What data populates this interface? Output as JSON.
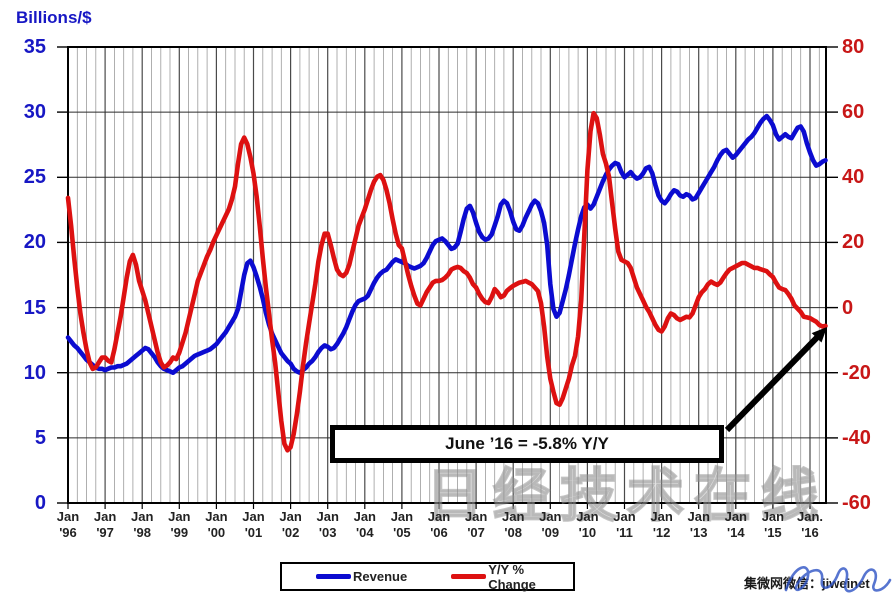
{
  "header": {
    "axis_title_left": "Billions/$"
  },
  "y_axis_left": {
    "labels": [
      "35",
      "30",
      "25",
      "20",
      "15",
      "10",
      "5",
      "0"
    ],
    "color": "#1717c4"
  },
  "y_axis_right": {
    "labels": [
      "80",
      "60",
      "40",
      "20",
      "0",
      "-20",
      "-40",
      "-60"
    ],
    "color": "#c81717"
  },
  "x_axis": {
    "years": [
      {
        "top": "Jan",
        "bottom": "'96"
      },
      {
        "top": "Jan",
        "bottom": "'97"
      },
      {
        "top": "Jan",
        "bottom": "'98"
      },
      {
        "top": "Jan",
        "bottom": "'99"
      },
      {
        "top": "Jan",
        "bottom": "'00"
      },
      {
        "top": "Jan",
        "bottom": "'01"
      },
      {
        "top": "Jan",
        "bottom": "'02"
      },
      {
        "top": "Jan",
        "bottom": "'03"
      },
      {
        "top": "Jan",
        "bottom": "'04"
      },
      {
        "top": "Jan",
        "bottom": "'05"
      },
      {
        "top": "Jan",
        "bottom": "'06"
      },
      {
        "top": "Jan",
        "bottom": "'07"
      },
      {
        "top": "Jan",
        "bottom": "'08"
      },
      {
        "top": "Jan",
        "bottom": "'09"
      },
      {
        "top": "Jan",
        "bottom": "'10"
      },
      {
        "top": "Jan",
        "bottom": "'11"
      },
      {
        "top": "Jan",
        "bottom": "'12"
      },
      {
        "top": "Jan",
        "bottom": "'13"
      },
      {
        "top": "Jan",
        "bottom": "'14"
      },
      {
        "top": "Jan",
        "bottom": "'15"
      },
      {
        "top": "Jan.",
        "bottom": "'16"
      }
    ]
  },
  "annotation": {
    "text": "June ’16 = -5.8% Y/Y"
  },
  "legend": {
    "revenue": "Revenue",
    "yoy": "Y/Y % Change"
  },
  "footer": {
    "text": "集微网微信：jiweinet"
  },
  "watermark": {
    "text": "日经技术在线"
  },
  "chart_data": {
    "type": "line",
    "title": "",
    "freq": "monthly",
    "x_start": "1996-01",
    "x_end": "2016-06",
    "axes": {
      "left": {
        "label": "Billions/$",
        "range": [
          0,
          35
        ],
        "ticks": [
          0,
          5,
          10,
          15,
          20,
          25,
          30,
          35
        ]
      },
      "right": {
        "label": "Y/Y % Change",
        "range": [
          -60,
          80
        ],
        "ticks": [
          -60,
          -40,
          -20,
          0,
          20,
          40,
          60,
          80
        ]
      }
    },
    "grid": "on",
    "legend_position": "bottom",
    "annotations": [
      {
        "text": "June ’16 = -5.8% Y/Y",
        "x": "2016-06",
        "series": "Y/Y % Change",
        "value": -5.8
      }
    ],
    "series": [
      {
        "name": "Revenue",
        "axis": "left",
        "color": "#0b0bd0",
        "values": [
          12.7,
          12.4,
          12.1,
          11.9,
          11.6,
          11.3,
          11.0,
          10.8,
          10.6,
          10.4,
          10.3,
          10.3,
          10.2,
          10.3,
          10.4,
          10.4,
          10.5,
          10.5,
          10.6,
          10.7,
          10.9,
          11.1,
          11.3,
          11.5,
          11.7,
          11.9,
          11.8,
          11.5,
          11.2,
          10.8,
          10.5,
          10.3,
          10.2,
          10.1,
          10.0,
          10.2,
          10.4,
          10.5,
          10.7,
          10.9,
          11.1,
          11.3,
          11.4,
          11.5,
          11.6,
          11.7,
          11.8,
          12.0,
          12.2,
          12.5,
          12.8,
          13.1,
          13.5,
          13.9,
          14.3,
          14.9,
          16.2,
          17.5,
          18.4,
          18.6,
          18.1,
          17.4,
          16.6,
          15.7,
          14.6,
          13.7,
          13.0,
          12.5,
          12.0,
          11.5,
          11.2,
          10.9,
          10.7,
          10.3,
          10.1,
          10.0,
          10.2,
          10.4,
          10.7,
          10.9,
          11.2,
          11.6,
          11.9,
          12.1,
          12.0,
          11.8,
          11.9,
          12.2,
          12.6,
          13.0,
          13.5,
          14.1,
          14.7,
          15.2,
          15.5,
          15.6,
          15.7,
          15.9,
          16.4,
          16.9,
          17.3,
          17.6,
          17.8,
          17.9,
          18.2,
          18.5,
          18.7,
          18.6,
          18.5,
          18.4,
          18.2,
          18.1,
          18.0,
          18.1,
          18.2,
          18.4,
          18.8,
          19.3,
          19.8,
          20.1,
          20.2,
          20.3,
          20.1,
          19.8,
          19.5,
          19.6,
          19.9,
          20.8,
          21.8,
          22.6,
          22.8,
          22.3,
          21.5,
          20.8,
          20.4,
          20.2,
          20.3,
          20.6,
          21.3,
          22.0,
          22.9,
          23.2,
          23.0,
          22.4,
          21.6,
          21.0,
          20.9,
          21.3,
          21.9,
          22.4,
          22.9,
          23.2,
          23.0,
          22.4,
          21.5,
          19.8,
          16.8,
          14.9,
          14.3,
          14.6,
          15.5,
          16.4,
          17.5,
          18.7,
          19.9,
          21.0,
          22.0,
          22.7,
          22.9,
          22.6,
          22.9,
          23.5,
          24.1,
          24.7,
          25.2,
          25.6,
          25.9,
          26.1,
          26.0,
          25.4,
          25.0,
          25.2,
          25.4,
          25.1,
          24.9,
          25.0,
          25.3,
          25.7,
          25.8,
          25.3,
          24.4,
          23.6,
          23.2,
          23.0,
          23.3,
          23.7,
          24.0,
          23.9,
          23.6,
          23.5,
          23.7,
          23.6,
          23.3,
          23.4,
          23.8,
          24.2,
          24.6,
          25.0,
          25.4,
          25.8,
          26.3,
          26.7,
          27.0,
          27.1,
          26.8,
          26.5,
          26.7,
          27.0,
          27.3,
          27.6,
          27.9,
          28.1,
          28.4,
          28.8,
          29.2,
          29.5,
          29.7,
          29.4,
          29.0,
          28.3,
          27.9,
          28.1,
          28.3,
          28.1,
          28.0,
          28.4,
          28.8,
          28.9,
          28.5,
          27.6,
          26.9,
          26.3,
          25.9,
          26.0,
          26.2,
          26.3
        ]
      },
      {
        "name": "Y/Y % Change",
        "axis": "right",
        "color": "#dd1111",
        "values": [
          33.5,
          25,
          15,
          6,
          -2,
          -8,
          -13,
          -17,
          -19,
          -18.5,
          -17,
          -15.5,
          -15.5,
          -16.5,
          -17,
          -13,
          -8,
          -3,
          3,
          9,
          14,
          16,
          13,
          8,
          5,
          2,
          -2,
          -6,
          -10,
          -14,
          -17,
          -18.5,
          -18,
          -17,
          -15.5,
          -16,
          -14,
          -11,
          -8,
          -4,
          0,
          4,
          8,
          10.5,
          13,
          15.5,
          17.5,
          20,
          22,
          24,
          26,
          28,
          30,
          33,
          37,
          44,
          50,
          52,
          50,
          46,
          41,
          34,
          25,
          15,
          6,
          -2,
          -10,
          -17,
          -26,
          -35,
          -42,
          -44,
          -43,
          -39,
          -33,
          -26,
          -18,
          -11,
          -5,
          1,
          7,
          14,
          19,
          22.5,
          22.5,
          19,
          15,
          11.5,
          10,
          9.5,
          10.5,
          13,
          17,
          21,
          25,
          27.5,
          30,
          33,
          36,
          38.5,
          40,
          40.5,
          39,
          36,
          32,
          27,
          22.5,
          19,
          18,
          14,
          10,
          6.5,
          3.5,
          1,
          0.5,
          2.5,
          4.5,
          6,
          7.5,
          8,
          8,
          8.3,
          9,
          10,
          11.5,
          12,
          12.3,
          12,
          11,
          10.4,
          9,
          7,
          6,
          4,
          2.5,
          1.5,
          1.2,
          3,
          5.5,
          4.5,
          3,
          3.5,
          5,
          5.8,
          6.5,
          7,
          7.5,
          7.7,
          8,
          7.5,
          7,
          6,
          4.9,
          1.2,
          -6,
          -15.3,
          -22,
          -26,
          -29.5,
          -30,
          -28,
          -25,
          -22,
          -18,
          -15,
          -9,
          2,
          22,
          42,
          54,
          59.5,
          58,
          53,
          47,
          44,
          40,
          32,
          24,
          17,
          14.5,
          14,
          13.5,
          12,
          9,
          6,
          4,
          2,
          0,
          -1.5,
          -3.5,
          -5.5,
          -7,
          -7.5,
          -6,
          -3.5,
          -2,
          -2.5,
          -3.5,
          -4,
          -3.5,
          -3,
          -3.2,
          -2,
          0.5,
          3,
          4.5,
          5.5,
          7,
          7.8,
          7.2,
          6.8,
          7.5,
          9,
          10.4,
          11.5,
          12,
          12.5,
          13,
          13.5,
          13.5,
          13,
          12.5,
          12,
          12,
          11.6,
          11.3,
          11,
          10,
          9.2,
          7.5,
          6,
          5.5,
          5.2,
          4,
          2.5,
          0.5,
          -0.5,
          -1.5,
          -3,
          -3.2,
          -3.4,
          -4,
          -4.5,
          -5.5,
          -6,
          -5.8
        ]
      }
    ]
  }
}
